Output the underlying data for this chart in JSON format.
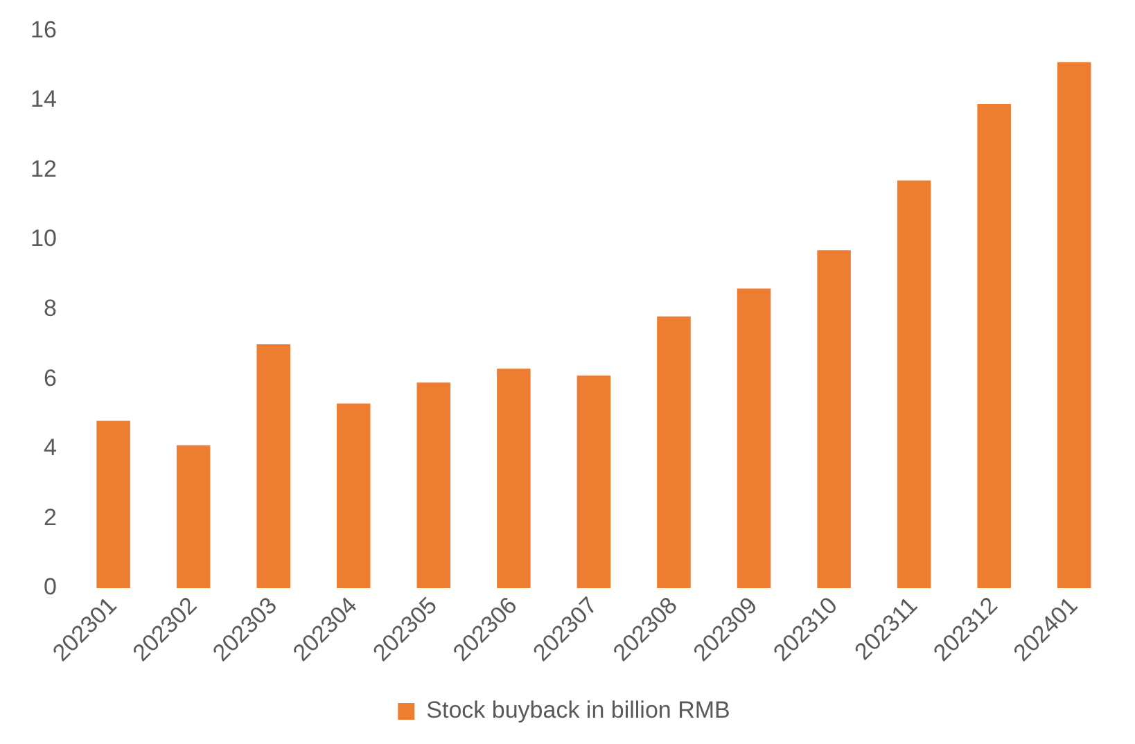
{
  "chart_data": {
    "type": "bar",
    "categories": [
      "202301",
      "202302",
      "202303",
      "202304",
      "202305",
      "202306",
      "202307",
      "202308",
      "202309",
      "202310",
      "202311",
      "202312",
      "202401"
    ],
    "series": [
      {
        "name": "Stock buyback in billion RMB",
        "color": "#ed7d31",
        "values": [
          4.8,
          4.1,
          7.0,
          5.3,
          5.9,
          6.3,
          6.1,
          7.8,
          8.6,
          9.7,
          11.7,
          13.9,
          15.1
        ]
      }
    ],
    "ylim": [
      0,
      16
    ],
    "yticks": [
      0,
      2,
      4,
      6,
      8,
      10,
      12,
      14,
      16
    ],
    "grid": false,
    "legend": "bottom"
  }
}
